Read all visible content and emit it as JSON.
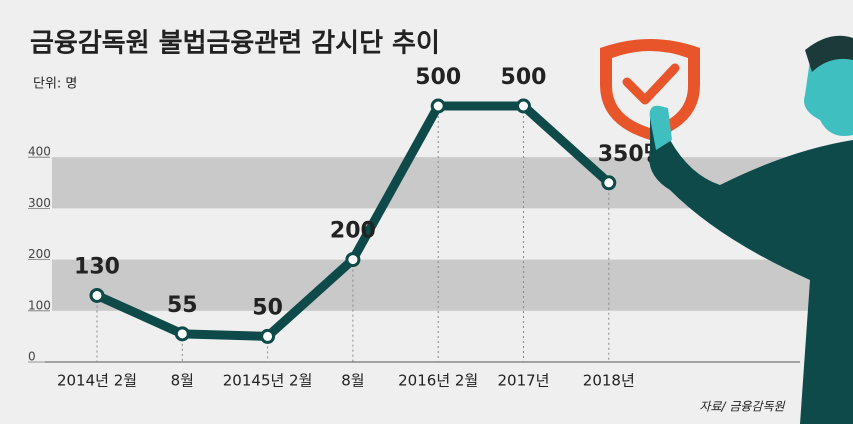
{
  "chart_data": {
    "type": "line",
    "title": "금융감독원 불법금융관련 감시단 추이",
    "subtitle": "단위: 명",
    "source": "자료/ 금융감독원",
    "categories": [
      "2014년 2월",
      "8월",
      "20145년 2월",
      "8월",
      "2016년 2월",
      "2017년",
      "2018년"
    ],
    "values": [
      130,
      55,
      50,
      200,
      500,
      500,
      350
    ],
    "value_labels": [
      "130",
      "55",
      "50",
      "200",
      "500",
      "500",
      "350명"
    ],
    "color": "#0f4a4a",
    "ylim": [
      0,
      500
    ],
    "yticks": [
      0,
      100,
      200,
      300,
      400
    ]
  }
}
